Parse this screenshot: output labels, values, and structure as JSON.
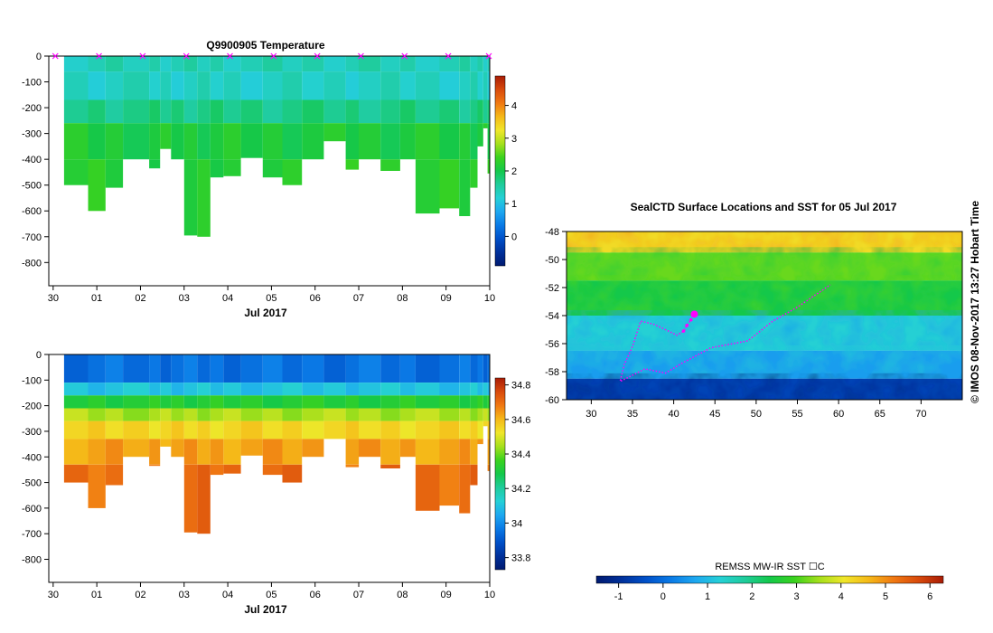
{
  "colors": {
    "palette": [
      "#001a70",
      "#00309a",
      "#0050c8",
      "#0a7ae6",
      "#1ea8f0",
      "#25d0d6",
      "#1fcc9a",
      "#14c84a",
      "#3ad21e",
      "#a6e01c",
      "#f0e62a",
      "#f5b818",
      "#f07812",
      "#d84a0c",
      "#a81c06"
    ],
    "axis": "#000000",
    "track": "#ff00ff"
  },
  "top_title": "Q9900905  Temperature",
  "map_title": "SealCTD Surface Locations and SST for 05 Jul 2017",
  "side_label": "©  IMOS 08-Nov-2017 13:27 Hobart Time",
  "sst_label": "REMSS MW-IR SST ☐C",
  "chart_data": [
    {
      "type": "heatmap",
      "name": "temperature-profile",
      "title": "Q9900905  Temperature",
      "xlabel": "Jul 2017",
      "ylabel": "",
      "x_ticks": [
        "30",
        "01",
        "02",
        "03",
        "04",
        "05",
        "06",
        "07",
        "08",
        "09",
        "10"
      ],
      "x_range": [
        -0.1,
        10.0
      ],
      "y_ticks": [
        "0",
        "-100",
        "-200",
        "-300",
        "-400",
        "-500",
        "-600",
        "-700",
        "-800"
      ],
      "y_range": [
        0,
        -890
      ],
      "colorbar_ticks": [
        "0",
        "1",
        "2",
        "3",
        "4"
      ],
      "colorbar_range": [
        -0.9,
        4.9
      ],
      "profile_marker_days": [
        0.05,
        1.05,
        2.05,
        3.05,
        4.05,
        5.05,
        6.05,
        7.05,
        8.05,
        9.05,
        9.98
      ],
      "profiles": [
        {
          "start": 0.25,
          "end": 0.8,
          "max_depth": -500
        },
        {
          "start": 0.8,
          "end": 1.2,
          "max_depth": -600
        },
        {
          "start": 1.2,
          "end": 1.6,
          "max_depth": -510
        },
        {
          "start": 1.6,
          "end": 2.2,
          "max_depth": -400
        },
        {
          "start": 2.2,
          "end": 2.45,
          "max_depth": -435
        },
        {
          "start": 2.45,
          "end": 2.7,
          "max_depth": -360
        },
        {
          "start": 2.7,
          "end": 3.0,
          "max_depth": -400
        },
        {
          "start": 3.0,
          "end": 3.3,
          "max_depth": -695
        },
        {
          "start": 3.3,
          "end": 3.6,
          "max_depth": -700
        },
        {
          "start": 3.6,
          "end": 3.9,
          "max_depth": -470
        },
        {
          "start": 3.9,
          "end": 4.3,
          "max_depth": -465
        },
        {
          "start": 4.3,
          "end": 4.8,
          "max_depth": -395
        },
        {
          "start": 4.8,
          "end": 5.25,
          "max_depth": -470
        },
        {
          "start": 5.25,
          "end": 5.7,
          "max_depth": -500
        },
        {
          "start": 5.7,
          "end": 6.2,
          "max_depth": -400
        },
        {
          "start": 6.2,
          "end": 6.7,
          "max_depth": -330
        },
        {
          "start": 6.7,
          "end": 7.0,
          "max_depth": -440
        },
        {
          "start": 7.0,
          "end": 7.5,
          "max_depth": -400
        },
        {
          "start": 7.5,
          "end": 7.95,
          "max_depth": -445
        },
        {
          "start": 7.95,
          "end": 8.3,
          "max_depth": -400
        },
        {
          "start": 8.3,
          "end": 8.85,
          "max_depth": -610
        },
        {
          "start": 8.85,
          "end": 9.3,
          "max_depth": -590
        },
        {
          "start": 9.3,
          "end": 9.55,
          "max_depth": -620
        },
        {
          "start": 9.55,
          "end": 9.72,
          "max_depth": -510
        },
        {
          "start": 9.72,
          "end": 9.85,
          "max_depth": -350
        },
        {
          "start": 9.85,
          "end": 9.95,
          "max_depth": -280
        },
        {
          "start": 9.95,
          "end": 10.0,
          "max_depth": -455
        }
      ],
      "layers": [
        {
          "from": 0,
          "to": -60,
          "value": 1.4
        },
        {
          "from": -60,
          "to": -170,
          "value": 1.3
        },
        {
          "from": -170,
          "to": -260,
          "value": 1.7
        },
        {
          "from": -260,
          "to": -400,
          "value": 2.1
        },
        {
          "from": -400,
          "to": -720,
          "value": 2.2
        }
      ]
    },
    {
      "type": "heatmap",
      "name": "salinity-profile",
      "title": "",
      "xlabel": "Jul 2017",
      "ylabel": "",
      "x_ticks": [
        "30",
        "01",
        "02",
        "03",
        "04",
        "05",
        "06",
        "07",
        "08",
        "09",
        "10"
      ],
      "x_range": [
        -0.1,
        10.0
      ],
      "y_ticks": [
        "0",
        "-100",
        "-200",
        "-300",
        "-400",
        "-500",
        "-600",
        "-700",
        "-800"
      ],
      "y_range": [
        0,
        -890
      ],
      "colorbar_ticks": [
        "33.8",
        "34",
        "34.2",
        "34.4",
        "34.6",
        "34.8"
      ],
      "colorbar_range": [
        33.73,
        34.84
      ],
      "profiles_ref": "temperature-profile",
      "layers": [
        {
          "from": 0,
          "to": -110,
          "value": 33.95
        },
        {
          "from": -110,
          "to": -160,
          "value": 34.1
        },
        {
          "from": -160,
          "to": -210,
          "value": 34.32
        },
        {
          "from": -210,
          "to": -260,
          "value": 34.45
        },
        {
          "from": -260,
          "to": -330,
          "value": 34.55
        },
        {
          "from": -330,
          "to": -430,
          "value": 34.63
        },
        {
          "from": -430,
          "to": -720,
          "value": 34.7
        }
      ]
    },
    {
      "type": "heatmap",
      "name": "sst-map",
      "title": "SealCTD Surface Locations and SST for 05 Jul 2017",
      "xlabel": "",
      "ylabel": "",
      "x_ticks": [
        "30",
        "35",
        "40",
        "45",
        "50",
        "55",
        "60",
        "65",
        "70"
      ],
      "x_range": [
        27,
        75
      ],
      "y_ticks": [
        "-48",
        "-50",
        "-52",
        "-54",
        "-56",
        "-58",
        "-60"
      ],
      "y_range": [
        -48,
        -60
      ],
      "colorbar_label": "REMSS MW-IR SST ☐C",
      "colorbar_ticks": [
        "-1",
        "0",
        "1",
        "2",
        "3",
        "4",
        "5",
        "6"
      ],
      "colorbar_range": [
        -1.5,
        6.3
      ],
      "sst_bands": [
        {
          "lat_from": -48,
          "lat_to": -49.5,
          "value": 4.2
        },
        {
          "lat_from": -49.5,
          "lat_to": -51.5,
          "value": 3.2
        },
        {
          "lat_from": -51.5,
          "lat_to": -54,
          "value": 2.4
        },
        {
          "lat_from": -54,
          "lat_to": -56.5,
          "value": 1.3
        },
        {
          "lat_from": -56.5,
          "lat_to": -58.5,
          "value": 0.6
        },
        {
          "lat_from": -58.5,
          "lat_to": -60,
          "value": -0.6
        }
      ],
      "track": [
        [
          42.3,
          -54.0
        ],
        [
          42.1,
          -54.3
        ],
        [
          41.6,
          -54.7
        ],
        [
          41.2,
          -55.1
        ],
        [
          40.4,
          -55.4
        ],
        [
          39.0,
          -55.0
        ],
        [
          37.5,
          -54.6
        ],
        [
          36.0,
          -54.4
        ],
        [
          35.0,
          -56.2
        ],
        [
          34.0,
          -57.5
        ],
        [
          33.5,
          -58.7
        ],
        [
          36.5,
          -57.8
        ],
        [
          39.0,
          -58.1
        ],
        [
          41.0,
          -57.4
        ],
        [
          44.5,
          -56.3
        ],
        [
          49.0,
          -55.8
        ],
        [
          52.0,
          -54.4
        ],
        [
          55.0,
          -53.4
        ],
        [
          57.5,
          -52.4
        ],
        [
          59.0,
          -51.8
        ]
      ],
      "latest_position": [
        42.5,
        -53.9
      ]
    }
  ]
}
